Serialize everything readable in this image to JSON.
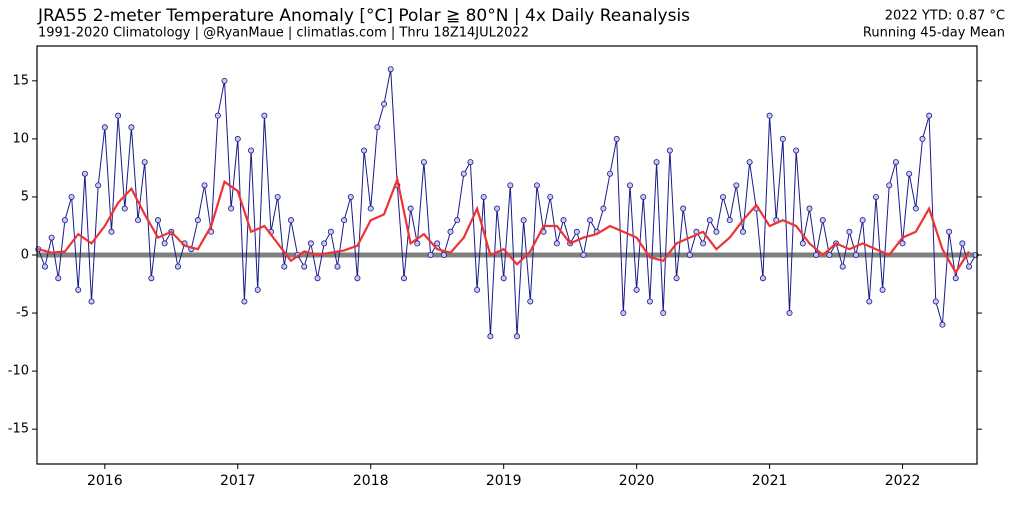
{
  "chart_data": {
    "type": "scatter",
    "title": "JRA55 2-meter Temperature Anomaly [°C] Polar ≧ 80°N | 4x Daily Reanalysis",
    "subtitle": "1991-2020 Climatology | @RyanMaue | climatlas.com | Thru 18Z14JUL2022",
    "annotation": "2022 YTD: 0.87 °C",
    "xlim": [
      2015.49,
      2022.56
    ],
    "xticks": [
      2016,
      2017,
      2018,
      2019,
      2020,
      2021,
      2022
    ],
    "ylim": [
      -18,
      18
    ],
    "yticks": [
      -15,
      -10,
      -5,
      0,
      5,
      10,
      15
    ],
    "zero_line": 0,
    "zero_line_color": "#808080",
    "series": [
      {
        "color": "#1a1a8c",
        "marker_fill": "#c8c8f0",
        "x": [
          2015.5,
          2015.55,
          2015.6,
          2015.65,
          2015.7,
          2015.75,
          2015.8,
          2015.85,
          2015.9,
          2015.95,
          2016.0,
          2016.05,
          2016.1,
          2016.15,
          2016.2,
          2016.25,
          2016.3,
          2016.35,
          2016.4,
          2016.45,
          2016.5,
          2016.55,
          2016.6,
          2016.65,
          2016.7,
          2016.75,
          2016.8,
          2016.85,
          2016.9,
          2016.95,
          2017.0,
          2017.05,
          2017.1,
          2017.15,
          2017.2,
          2017.25,
          2017.3,
          2017.35,
          2017.4,
          2017.45,
          2017.5,
          2017.55,
          2017.6,
          2017.65,
          2017.7,
          2017.75,
          2017.8,
          2017.85,
          2017.9,
          2017.95,
          2018.0,
          2018.05,
          2018.1,
          2018.15,
          2018.2,
          2018.25,
          2018.3,
          2018.35,
          2018.4,
          2018.45,
          2018.5,
          2018.55,
          2018.6,
          2018.65,
          2018.7,
          2018.75,
          2018.8,
          2018.85,
          2018.9,
          2018.95,
          2019.0,
          2019.05,
          2019.1,
          2019.15,
          2019.2,
          2019.25,
          2019.3,
          2019.35,
          2019.4,
          2019.45,
          2019.5,
          2019.55,
          2019.6,
          2019.65,
          2019.7,
          2019.75,
          2019.8,
          2019.85,
          2019.9,
          2019.95,
          2020.0,
          2020.05,
          2020.1,
          2020.15,
          2020.2,
          2020.25,
          2020.3,
          2020.35,
          2020.4,
          2020.45,
          2020.5,
          2020.55,
          2020.6,
          2020.65,
          2020.7,
          2020.75,
          2020.8,
          2020.85,
          2020.9,
          2020.95,
          2021.0,
          2021.05,
          2021.1,
          2021.15,
          2021.2,
          2021.25,
          2021.3,
          2021.35,
          2021.4,
          2021.45,
          2021.5,
          2021.55,
          2021.6,
          2021.65,
          2021.7,
          2021.75,
          2021.8,
          2021.85,
          2021.9,
          2021.95,
          2022.0,
          2022.05,
          2022.1,
          2022.15,
          2022.2,
          2022.25,
          2022.3,
          2022.35,
          2022.4,
          2022.45,
          2022.5,
          2022.55
        ],
        "values": [
          0.5,
          -1,
          1.5,
          -2,
          3,
          5,
          -3,
          7,
          -4,
          6,
          11,
          2,
          12,
          4,
          11,
          3,
          8,
          -2,
          3,
          1,
          2,
          -1,
          1,
          0.5,
          3,
          6,
          2,
          12,
          15,
          4,
          10,
          -4,
          9,
          -3,
          12,
          2,
          5,
          -1,
          3,
          0,
          -1,
          1,
          -2,
          1,
          2,
          -1,
          3,
          5,
          -2,
          9,
          4,
          11,
          13,
          16,
          6,
          -2,
          4,
          1,
          8,
          0,
          1,
          0,
          2,
          3,
          7,
          8,
          -3,
          5,
          -7,
          4,
          -2,
          6,
          -7,
          3,
          -4,
          6,
          2,
          5,
          1,
          3,
          1,
          2,
          0,
          3,
          2,
          4,
          7,
          10,
          -5,
          6,
          -3,
          5,
          -4,
          8,
          -5,
          9,
          -2,
          4,
          0,
          2,
          1,
          3,
          2,
          5,
          3,
          6,
          2,
          8,
          4,
          -2,
          12,
          3,
          10,
          -5,
          9,
          1,
          4,
          0,
          3,
          0,
          1,
          -1,
          2,
          0,
          3,
          -4,
          5,
          -3,
          6,
          8,
          1,
          7,
          4,
          10,
          12,
          -4,
          -6,
          2,
          -2,
          1,
          -1,
          0
        ]
      },
      {
        "name": "Running 45-day Mean",
        "color": "#ee3333",
        "x": [
          2015.5,
          2015.6,
          2015.7,
          2015.8,
          2015.9,
          2016.0,
          2016.1,
          2016.2,
          2016.3,
          2016.4,
          2016.5,
          2016.6,
          2016.7,
          2016.8,
          2016.9,
          2017.0,
          2017.1,
          2017.2,
          2017.3,
          2017.4,
          2017.5,
          2017.6,
          2017.7,
          2017.8,
          2017.9,
          2018.0,
          2018.1,
          2018.2,
          2018.3,
          2018.4,
          2018.5,
          2018.6,
          2018.7,
          2018.8,
          2018.9,
          2019.0,
          2019.1,
          2019.2,
          2019.3,
          2019.4,
          2019.5,
          2019.6,
          2019.7,
          2019.8,
          2019.9,
          2020.0,
          2020.1,
          2020.2,
          2020.3,
          2020.4,
          2020.5,
          2020.6,
          2020.7,
          2020.8,
          2020.9,
          2021.0,
          2021.1,
          2021.2,
          2021.3,
          2021.4,
          2021.5,
          2021.6,
          2021.7,
          2021.8,
          2021.9,
          2022.0,
          2022.1,
          2022.2,
          2022.3,
          2022.4,
          2022.5
        ],
        "values": [
          0.5,
          0.2,
          0.3,
          1.8,
          1.0,
          2.5,
          4.5,
          5.7,
          3.5,
          1.5,
          2.0,
          0.8,
          0.5,
          2.5,
          6.3,
          5.5,
          2.0,
          2.5,
          1.0,
          -0.5,
          0.3,
          0.0,
          0.2,
          0.4,
          0.8,
          3.0,
          3.5,
          6.5,
          1.0,
          1.8,
          0.5,
          0.2,
          1.5,
          4.0,
          0.0,
          0.5,
          -0.8,
          0.3,
          2.5,
          2.5,
          1.0,
          1.5,
          1.8,
          2.5,
          2.0,
          1.5,
          -0.2,
          -0.5,
          1.0,
          1.5,
          2.0,
          0.5,
          1.5,
          3.0,
          4.3,
          2.5,
          3.0,
          2.5,
          1.0,
          0.0,
          1.0,
          0.5,
          1.0,
          0.5,
          0.0,
          1.5,
          2.0,
          4.0,
          0.5,
          -1.5,
          0.3
        ]
      }
    ]
  }
}
